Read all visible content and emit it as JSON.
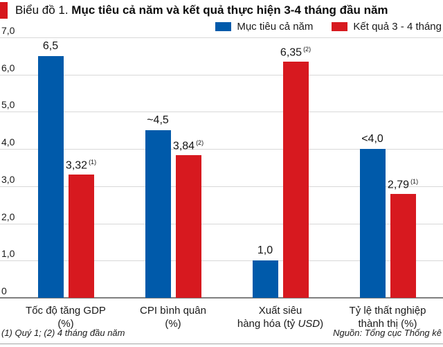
{
  "header": {
    "accent_color": "#d6161c",
    "title_prefix": "Biểu đồ 1.",
    "title_main": "Mục tiêu cả năm và kết quả thực hiện 3-4 tháng đầu năm"
  },
  "legend": {
    "items": [
      {
        "label": "Mục tiêu cả năm",
        "color": "#005aaa"
      },
      {
        "label": "Kết quả 3 - 4 tháng",
        "color": "#d7191f"
      }
    ]
  },
  "chart_data": {
    "type": "bar",
    "title": "Biểu đồ 1. Mục tiêu cả năm và kết quả thực hiện 3-4 tháng đầu năm",
    "categories": [
      "Tốc độ tăng GDP (%)",
      "CPI bình quân (%)",
      "Xuất siêu hàng hóa (tỷ USD)",
      "Tỷ lệ thất nghiệp thành thị (%)"
    ],
    "category_lines": [
      [
        [
          {
            "t": "Tốc độ tăng GDP"
          }
        ],
        [
          {
            "t": "(%)"
          }
        ]
      ],
      [
        [
          {
            "t": "CPI bình quân"
          }
        ],
        [
          {
            "t": "(%)"
          }
        ]
      ],
      [
        [
          {
            "t": "Xuất siêu"
          }
        ],
        [
          {
            "t": "hàng hóa (tỷ "
          },
          {
            "t": "USD",
            "i": true
          },
          {
            "t": ")"
          }
        ]
      ],
      [
        [
          {
            "t": "Tỷ lệ thất nghiệp"
          }
        ],
        [
          {
            "t": "thành thị (%)"
          }
        ]
      ]
    ],
    "series": [
      {
        "name": "Mục tiêu cả năm",
        "color": "#005aaa",
        "values": [
          6.5,
          4.5,
          1.0,
          4.0
        ],
        "labels": [
          "6,5",
          "~4,5",
          "1,0",
          "<4,0"
        ],
        "sups": [
          "",
          "",
          "",
          ""
        ]
      },
      {
        "name": "Kết quả 3 - 4 tháng",
        "color": "#d7191f",
        "values": [
          3.32,
          3.84,
          6.35,
          2.79
        ],
        "labels": [
          "3,32",
          "3,84",
          "6,35",
          "2,79"
        ],
        "sups": [
          "(1)",
          "(2)",
          "(2)",
          "(1)"
        ]
      }
    ],
    "ylim": [
      0,
      7
    ],
    "yticks": [
      {
        "v": 7,
        "label": "7,0"
      },
      {
        "v": 6,
        "label": "6,0"
      },
      {
        "v": 5,
        "label": "5,0"
      },
      {
        "v": 4,
        "label": "4,0"
      },
      {
        "v": 3,
        "label": "3,0"
      },
      {
        "v": 2,
        "label": "2,0"
      },
      {
        "v": 1,
        "label": "1,0"
      },
      {
        "v": 0,
        "label": "0"
      }
    ],
    "grid": true,
    "legend_position": "top-right",
    "gridline_color": "#d8d8d8",
    "baseline_color": "#7f7f7f"
  },
  "footnotes": {
    "left": "(1) Quý 1; (2) 4 tháng đầu năm",
    "right": "Nguồn: Tổng cục Thống kê"
  }
}
